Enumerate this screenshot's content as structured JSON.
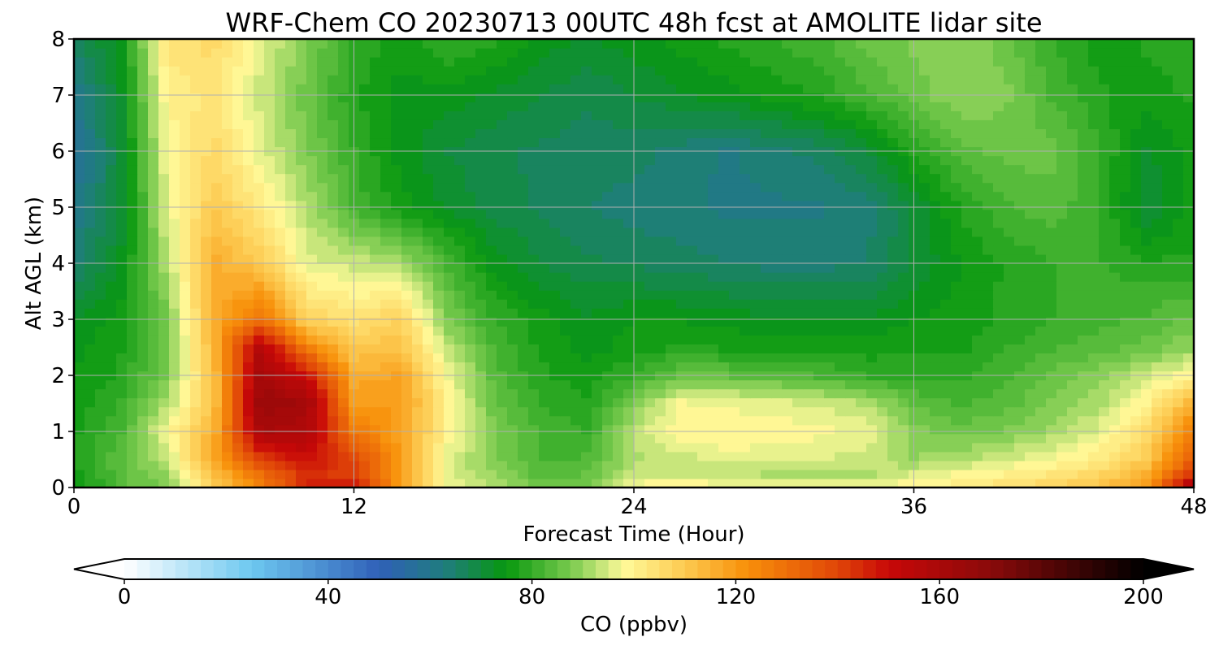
{
  "chart_data": {
    "type": "heatmap",
    "title": "WRF-Chem CO  20230713 00UTC 48h fcst at AMOLITE lidar site",
    "xlabel": "Forecast Time (Hour)",
    "ylabel": "Alt AGL (km)",
    "xlim": [
      0,
      48
    ],
    "ylim": [
      0,
      8
    ],
    "x_ticks": [
      0,
      12,
      24,
      36,
      48
    ],
    "y_ticks": [
      0,
      1,
      2,
      3,
      4,
      5,
      6,
      7,
      8
    ],
    "grid": true,
    "colorbar": {
      "label": "CO  (ppbv)",
      "range": [
        0,
        200
      ],
      "step": 2.5,
      "ticks": [
        0,
        40,
        80,
        120,
        160,
        200
      ],
      "extend": "both",
      "stops": [
        {
          "value": 0,
          "color": "#ffffff"
        },
        {
          "value": 25,
          "color": "#6dc8f0"
        },
        {
          "value": 50,
          "color": "#3060b8"
        },
        {
          "value": 63,
          "color": "#1f7d7d"
        },
        {
          "value": 75,
          "color": "#08980f"
        },
        {
          "value": 88,
          "color": "#7dcc50"
        },
        {
          "value": 98,
          "color": "#fffa9a"
        },
        {
          "value": 110,
          "color": "#fdca50"
        },
        {
          "value": 122,
          "color": "#f8900a"
        },
        {
          "value": 140,
          "color": "#e04608"
        },
        {
          "value": 150,
          "color": "#c80808"
        },
        {
          "value": 170,
          "color": "#8a0a0a"
        },
        {
          "value": 200,
          "color": "#000000"
        }
      ]
    },
    "x": [
      0,
      2,
      4,
      6,
      8,
      10,
      12,
      14,
      16,
      18,
      20,
      22,
      24,
      26,
      28,
      30,
      32,
      34,
      36,
      38,
      40,
      42,
      44,
      46,
      48
    ],
    "y": [
      0,
      0.25,
      0.5,
      1,
      1.5,
      2,
      2.5,
      3,
      4,
      5,
      6,
      7,
      8
    ],
    "values": [
      [
        74,
        84,
        88,
        108,
        125,
        145,
        150,
        120,
        98,
        93,
        86,
        86,
        99,
        100,
        99,
        98,
        97,
        97,
        100,
        102,
        105,
        108,
        112,
        120,
        165
      ],
      [
        76,
        84,
        90,
        112,
        130,
        145,
        140,
        118,
        96,
        90,
        84,
        85,
        94,
        94,
        93,
        92,
        91,
        92,
        95,
        98,
        100,
        103,
        107,
        115,
        145
      ],
      [
        78,
        84,
        93,
        118,
        140,
        150,
        140,
        120,
        96,
        88,
        82,
        83,
        92,
        93,
        96,
        96,
        95,
        94,
        90,
        92,
        95,
        98,
        102,
        110,
        135
      ],
      [
        77,
        82,
        98,
        115,
        160,
        158,
        128,
        118,
        100,
        88,
        82,
        80,
        93,
        100,
        100,
        99,
        98,
        97,
        89,
        86,
        88,
        91,
        96,
        106,
        128
      ],
      [
        76,
        80,
        92,
        112,
        165,
        162,
        120,
        120,
        100,
        86,
        80,
        78,
        88,
        98,
        97,
        96,
        95,
        92,
        85,
        82,
        84,
        88,
        92,
        100,
        115
      ],
      [
        75,
        78,
        88,
        112,
        162,
        150,
        116,
        118,
        98,
        84,
        78,
        76,
        80,
        86,
        85,
        84,
        82,
        80,
        79,
        79,
        82,
        86,
        89,
        94,
        100
      ],
      [
        74,
        77,
        86,
        115,
        158,
        126,
        110,
        112,
        93,
        82,
        77,
        74,
        76,
        78,
        77,
        77,
        77,
        76,
        77,
        77,
        80,
        82,
        84,
        86,
        90
      ],
      [
        73,
        76,
        87,
        116,
        130,
        108,
        104,
        108,
        88,
        80,
        76,
        73,
        75,
        75,
        74,
        73,
        73,
        73,
        75,
        76,
        78,
        80,
        82,
        83,
        86
      ],
      [
        64,
        73,
        92,
        116,
        110,
        96,
        94,
        92,
        82,
        74,
        70,
        68,
        67,
        66,
        65,
        64,
        64,
        65,
        70,
        75,
        78,
        80,
        80,
        78,
        78
      ],
      [
        60,
        70,
        96,
        110,
        102,
        92,
        82,
        76,
        72,
        69,
        67,
        65,
        64,
        63,
        62,
        62,
        62,
        64,
        70,
        78,
        82,
        84,
        80,
        70,
        76
      ],
      [
        57,
        70,
        98,
        106,
        96,
        88,
        80,
        74,
        70,
        68,
        67,
        66,
        66,
        64,
        62,
        64,
        66,
        70,
        78,
        84,
        86,
        86,
        80,
        72,
        76
      ],
      [
        60,
        72,
        100,
        104,
        94,
        86,
        78,
        74,
        74,
        72,
        70,
        68,
        70,
        72,
        74,
        76,
        78,
        82,
        86,
        90,
        88,
        82,
        78,
        76,
        78
      ],
      [
        66,
        74,
        104,
        106,
        96,
        88,
        80,
        76,
        80,
        78,
        74,
        72,
        74,
        76,
        78,
        80,
        82,
        86,
        88,
        90,
        86,
        80,
        76,
        78,
        80
      ]
    ]
  }
}
